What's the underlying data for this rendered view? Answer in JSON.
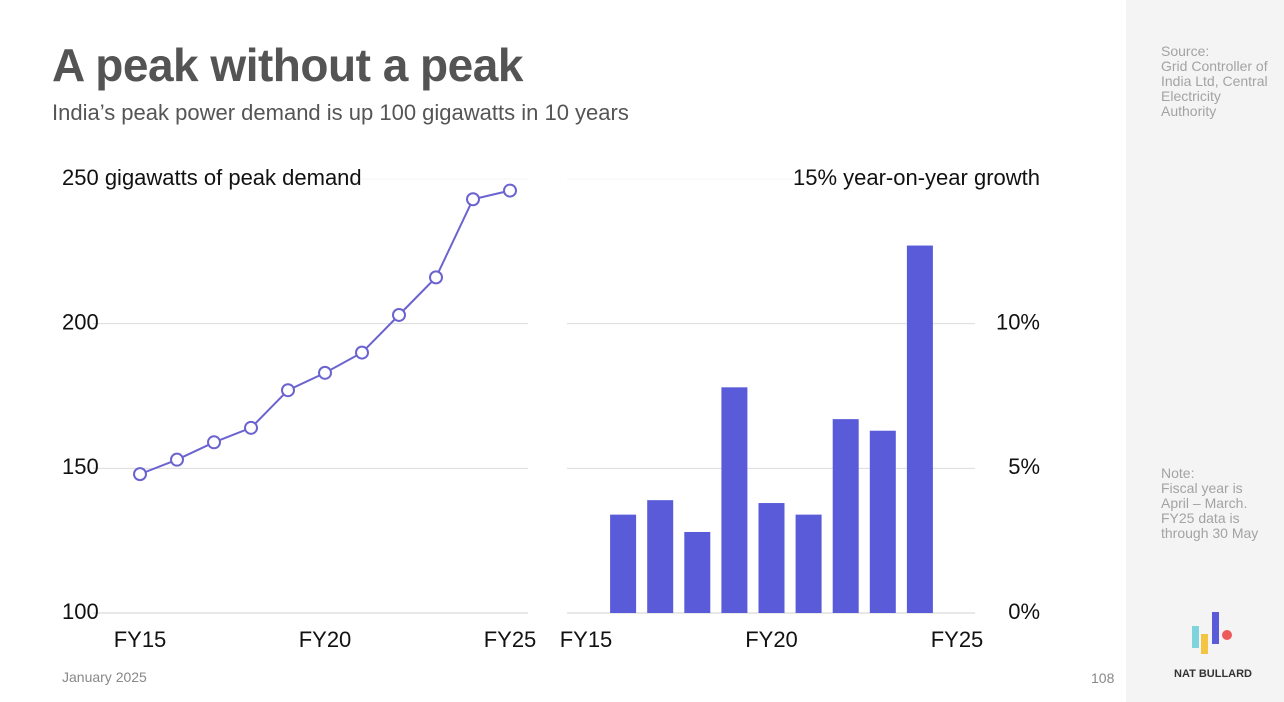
{
  "title": "A peak without a peak",
  "subtitle": "India’s peak power demand is up 100 gigawatts in 10 years",
  "source": "Source:\nGrid Controller of India Ltd, Central Electricity Authority",
  "note": "Note:\nFiscal year is April – March. FY25 data is through 30 May",
  "brand": "NAT BULLARD",
  "footer_date": "January 2025",
  "page_number": "108",
  "chart_data": [
    {
      "type": "line",
      "color": "#6b63d0",
      "y_axis": "left",
      "categories": [
        "FY15",
        null,
        null,
        null,
        null,
        "FY20",
        null,
        null,
        null,
        null,
        "FY25"
      ],
      "values": [
        148,
        153,
        159,
        164,
        177,
        183,
        190,
        203,
        216,
        243,
        246
      ],
      "ylim": [
        100,
        250
      ],
      "yticks": [
        100,
        150,
        200,
        {
          "value": 250,
          "label": "250 gigawatts of peak demand"
        }
      ],
      "grid": true
    },
    {
      "type": "bar",
      "color": "#5a5bd8",
      "y_axis": "right",
      "categories": [
        "FY15",
        null,
        null,
        null,
        null,
        "FY20",
        null,
        null,
        null,
        null,
        "FY25"
      ],
      "values": [
        null,
        3.4,
        3.9,
        2.8,
        7.8,
        3.8,
        3.4,
        6.7,
        6.3,
        12.7,
        null
      ],
      "ylim": [
        0,
        15
      ],
      "yticks": [
        {
          "value": 0,
          "label": "0%"
        },
        {
          "value": 5,
          "label": "5%"
        },
        {
          "value": 10,
          "label": "10%"
        },
        {
          "value": 15,
          "label": "15% year-on-year growth"
        }
      ],
      "grid": true
    }
  ]
}
